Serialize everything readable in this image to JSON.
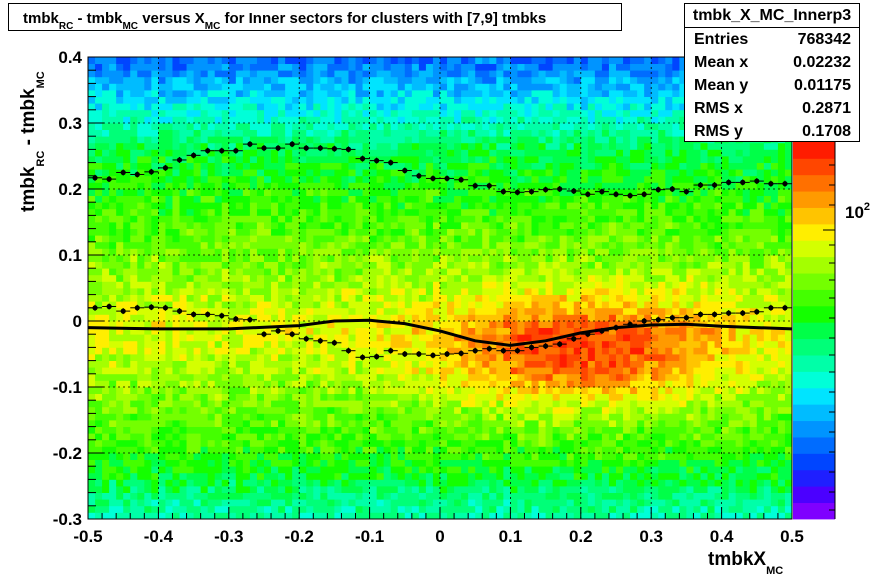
{
  "title": {
    "part1": "tmbk",
    "sub1": "RC",
    "part2": " - tmbk",
    "sub2": "MC",
    "part3": " versus X",
    "sub3": "MC",
    "part4": " for Inner sectors for clusters with [7,9] tmbks"
  },
  "stats": {
    "name": "tmbk_X_MC_Innerp3",
    "rows": [
      {
        "label": "Entries",
        "value": "768342"
      },
      {
        "label": "Mean x",
        "value": "0.02232"
      },
      {
        "label": "Mean y",
        "value": "0.01175"
      },
      {
        "label": "RMS x",
        "value": "0.2871"
      },
      {
        "label": "RMS y",
        "value": "0.1708"
      }
    ]
  },
  "chart_data": {
    "type": "heatmap",
    "xlabel": "tmbkX",
    "xlabel_sub": "MC",
    "ylabel_parts": [
      "tmbk",
      "RC",
      " - tmbk",
      "MC"
    ],
    "xlim": [
      -0.5,
      0.5
    ],
    "ylim": [
      -0.3,
      0.4
    ],
    "xticks": [
      "-0.5",
      "-0.4",
      "-0.3",
      "-0.2",
      "-0.1",
      "0",
      "0.1",
      "0.2",
      "0.3",
      "0.4",
      "0.5"
    ],
    "yticks": [
      "-0.3",
      "-0.2",
      "-0.1",
      "0",
      "0.1",
      "0.2",
      "0.3",
      "0.4"
    ],
    "grid": true,
    "colorbar": {
      "scale": "log",
      "label": "10",
      "label_exp": "2"
    },
    "profiles": [
      {
        "name": "upper",
        "x": [
          -0.49,
          -0.47,
          -0.45,
          -0.43,
          -0.41,
          -0.39,
          -0.37,
          -0.35,
          -0.33,
          -0.31,
          -0.29,
          -0.27,
          -0.25,
          -0.23,
          -0.21,
          -0.19,
          -0.17,
          -0.15,
          -0.13,
          -0.11,
          -0.09,
          -0.07,
          -0.05,
          -0.03,
          -0.01,
          0.01,
          0.03,
          0.05,
          0.07,
          0.09,
          0.11,
          0.13,
          0.15,
          0.17,
          0.19,
          0.21,
          0.23,
          0.25,
          0.27,
          0.29,
          0.31,
          0.33,
          0.35,
          0.37,
          0.39,
          0.41,
          0.43,
          0.45,
          0.47,
          0.49
        ],
        "y": [
          0.217,
          0.215,
          0.225,
          0.222,
          0.226,
          0.232,
          0.244,
          0.251,
          0.258,
          0.258,
          0.258,
          0.268,
          0.262,
          0.262,
          0.268,
          0.262,
          0.262,
          0.261,
          0.26,
          0.246,
          0.243,
          0.24,
          0.228,
          0.22,
          0.216,
          0.216,
          0.214,
          0.205,
          0.205,
          0.196,
          0.195,
          0.196,
          0.199,
          0.2,
          0.197,
          0.192,
          0.196,
          0.192,
          0.19,
          0.192,
          0.199,
          0.2,
          0.196,
          0.206,
          0.206,
          0.21,
          0.21,
          0.212,
          0.208,
          0.208
        ]
      },
      {
        "name": "lower",
        "x": [
          -0.49,
          -0.47,
          -0.45,
          -0.43,
          -0.41,
          -0.39,
          -0.37,
          -0.35,
          -0.33,
          -0.31,
          -0.29,
          -0.27,
          -0.25,
          -0.23,
          -0.21,
          -0.19,
          -0.17,
          -0.15,
          -0.13,
          -0.11,
          -0.09,
          -0.07,
          -0.05,
          -0.03,
          -0.01,
          0.01,
          0.03,
          0.05,
          0.07,
          0.09,
          0.11,
          0.13,
          0.15,
          0.17,
          0.19,
          0.21,
          0.23,
          0.25,
          0.27,
          0.29,
          0.31,
          0.33,
          0.35,
          0.37,
          0.39,
          0.41,
          0.43,
          0.45,
          0.47,
          0.49
        ],
        "y": [
          0.02,
          0.022,
          0.015,
          0.02,
          0.021,
          0.02,
          0.015,
          0.01,
          0.01,
          0.008,
          0.003,
          0.002,
          -0.02,
          -0.015,
          -0.02,
          -0.027,
          -0.03,
          -0.033,
          -0.045,
          -0.055,
          -0.054,
          -0.045,
          -0.05,
          -0.05,
          -0.052,
          -0.05,
          -0.049,
          -0.045,
          -0.042,
          -0.045,
          -0.045,
          -0.04,
          -0.038,
          -0.035,
          -0.027,
          -0.02,
          -0.015,
          -0.01,
          -0.005,
          0.0,
          0.002,
          0.005,
          0.005,
          0.01,
          0.01,
          0.012,
          0.012,
          0.014,
          0.02,
          0.02
        ]
      },
      {
        "name": "mean",
        "x": [
          -0.5,
          -0.4,
          -0.3,
          -0.2,
          -0.15,
          -0.1,
          -0.05,
          0.0,
          0.05,
          0.1,
          0.15,
          0.2,
          0.25,
          0.3,
          0.35,
          0.4,
          0.5
        ],
        "y": [
          -0.01,
          -0.012,
          -0.012,
          -0.007,
          0.0,
          0.001,
          -0.004,
          -0.015,
          -0.03,
          -0.037,
          -0.03,
          -0.018,
          -0.01,
          -0.006,
          -0.005,
          -0.008,
          -0.012
        ]
      }
    ]
  }
}
